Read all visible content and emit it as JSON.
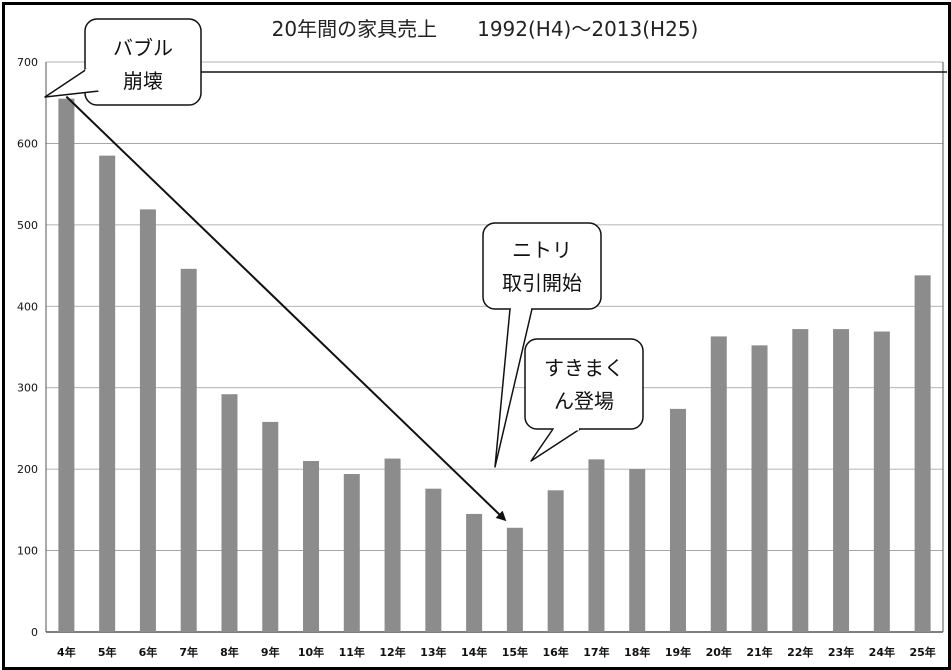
{
  "chart_data": {
    "type": "bar",
    "title": "20年間の家具売上　　1992(H4)～2013(H25)",
    "categories": [
      "4年",
      "5年",
      "6年",
      "7年",
      "8年",
      "9年",
      "10年",
      "11年",
      "12年",
      "13年",
      "14年",
      "15年",
      "16年",
      "17年",
      "18年",
      "19年",
      "20年",
      "21年",
      "22年",
      "23年",
      "24年",
      "25年"
    ],
    "values": [
      655,
      585,
      519,
      446,
      292,
      258,
      210,
      194,
      213,
      176,
      145,
      128,
      174,
      212,
      200,
      274,
      363,
      352,
      372,
      372,
      369,
      438
    ],
    "ylim": [
      0,
      700
    ],
    "yticks": [
      0,
      100,
      200,
      300,
      400,
      500,
      600,
      700
    ],
    "grid": true,
    "bar_color": "#8c8c8c",
    "annotations": [
      {
        "lines": [
          "バブル",
          "崩壊"
        ]
      },
      {
        "lines": [
          "ニトリ",
          "取引開始"
        ]
      },
      {
        "lines": [
          "すきまく",
          "ん登場"
        ]
      }
    ]
  }
}
